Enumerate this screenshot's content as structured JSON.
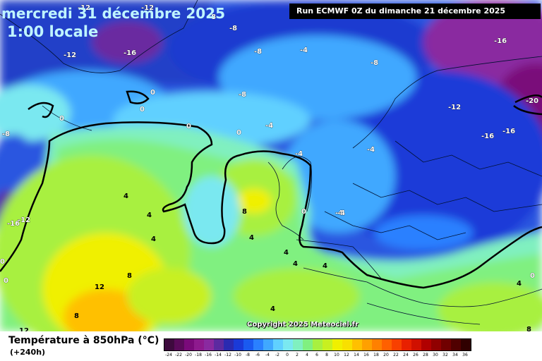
{
  "header": {
    "date_title": "mercredi 31 décembre 2025",
    "time_title": "1:00 locale",
    "run_info": "Run ECMWF 0Z du dimanche 21 décembre 2025"
  },
  "map": {
    "copyright": "Copyright 2025 Meteociel.fr",
    "isotherm_labels": [
      {
        "text": "-12"
      },
      {
        "text": "-12"
      },
      {
        "text": "-8"
      },
      {
        "text": "-8"
      },
      {
        "text": "-12"
      },
      {
        "text": "-16"
      },
      {
        "text": "-8"
      },
      {
        "text": "-4"
      },
      {
        "text": "-8"
      },
      {
        "text": "-16"
      },
      {
        "text": "0"
      },
      {
        "text": "-8"
      },
      {
        "text": "0"
      },
      {
        "text": "0"
      },
      {
        "text": "-12"
      },
      {
        "text": "-20"
      },
      {
        "text": "0"
      },
      {
        "text": "0"
      },
      {
        "text": "-4"
      },
      {
        "text": "-16"
      },
      {
        "text": "-16"
      },
      {
        "text": "-8"
      },
      {
        "text": "-4"
      },
      {
        "text": "-4"
      },
      {
        "text": "4"
      },
      {
        "text": "-4"
      },
      {
        "text": "-12"
      },
      {
        "text": "-16"
      },
      {
        "text": "4"
      },
      {
        "text": "8"
      },
      {
        "text": "0"
      },
      {
        "text": "-4"
      },
      {
        "text": "4"
      },
      {
        "text": "4"
      },
      {
        "text": "4"
      },
      {
        "text": "4"
      },
      {
        "text": "4"
      },
      {
        "text": "0"
      },
      {
        "text": "8"
      },
      {
        "text": "12"
      },
      {
        "text": "0"
      },
      {
        "text": "4"
      },
      {
        "text": "8"
      },
      {
        "text": "4"
      },
      {
        "text": "12"
      },
      {
        "text": "8"
      },
      {
        "text": "0"
      }
    ]
  },
  "legend": {
    "title": "Température à 850hPa (°C)",
    "subtitle": "(+240h)",
    "scale_values": [
      "-24",
      "-22",
      "-20",
      "-18",
      "-16",
      "-14",
      "-12",
      "-10",
      "-8",
      "-6",
      "-4",
      "-2",
      "0",
      "2",
      "4",
      "6",
      "8",
      "10",
      "12",
      "14",
      "16",
      "18",
      "20",
      "22",
      "24",
      "26",
      "28",
      "30",
      "32",
      "34",
      "36"
    ],
    "scale_colors": [
      "#3d0a3d",
      "#5a0a5a",
      "#7a0a7a",
      "#8e1a8e",
      "#8a2aa0",
      "#5c2aa0",
      "#2a2ab0",
      "#1a3ad8",
      "#1a5af0",
      "#2a80ff",
      "#40a8ff",
      "#60d0ff",
      "#7ae8f0",
      "#80f0c0",
      "#80f080",
      "#a8f040",
      "#c8f020",
      "#f0f000",
      "#f8e000",
      "#ffc000",
      "#ffa000",
      "#ff8000",
      "#ff6000",
      "#f84000",
      "#e82000",
      "#d01000",
      "#b00000",
      "#900000",
      "#700000",
      "#500000",
      "#300000"
    ]
  }
}
